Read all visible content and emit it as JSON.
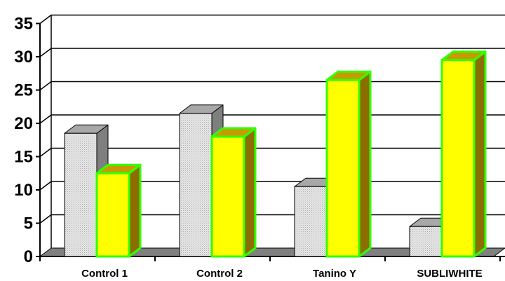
{
  "chart_data": {
    "type": "bar",
    "categories": [
      "Control 1",
      "Control 2",
      "Tanino Y",
      "SUBLIWHITE"
    ],
    "series": [
      {
        "values": [
          18.5,
          21.5,
          10.5,
          4.5
        ]
      },
      {
        "values": [
          12.5,
          18,
          26.5,
          29.5
        ]
      }
    ],
    "ylim": [
      0,
      35
    ],
    "yticks": [
      0,
      5,
      10,
      15,
      20,
      25,
      30,
      35
    ],
    "grid": true,
    "three_d": true,
    "colors": {
      "series_1_face": "#dcdcdc",
      "series_1_side": "#7f7f7f",
      "series_1_top": "#a8a8a8",
      "series_2_face": "#ffff00",
      "series_2_side": "#8c6d00",
      "series_2_top": "#c89a00",
      "series_2_outline": "#33ff00",
      "floor": "#808080",
      "grid": "#000000"
    }
  }
}
